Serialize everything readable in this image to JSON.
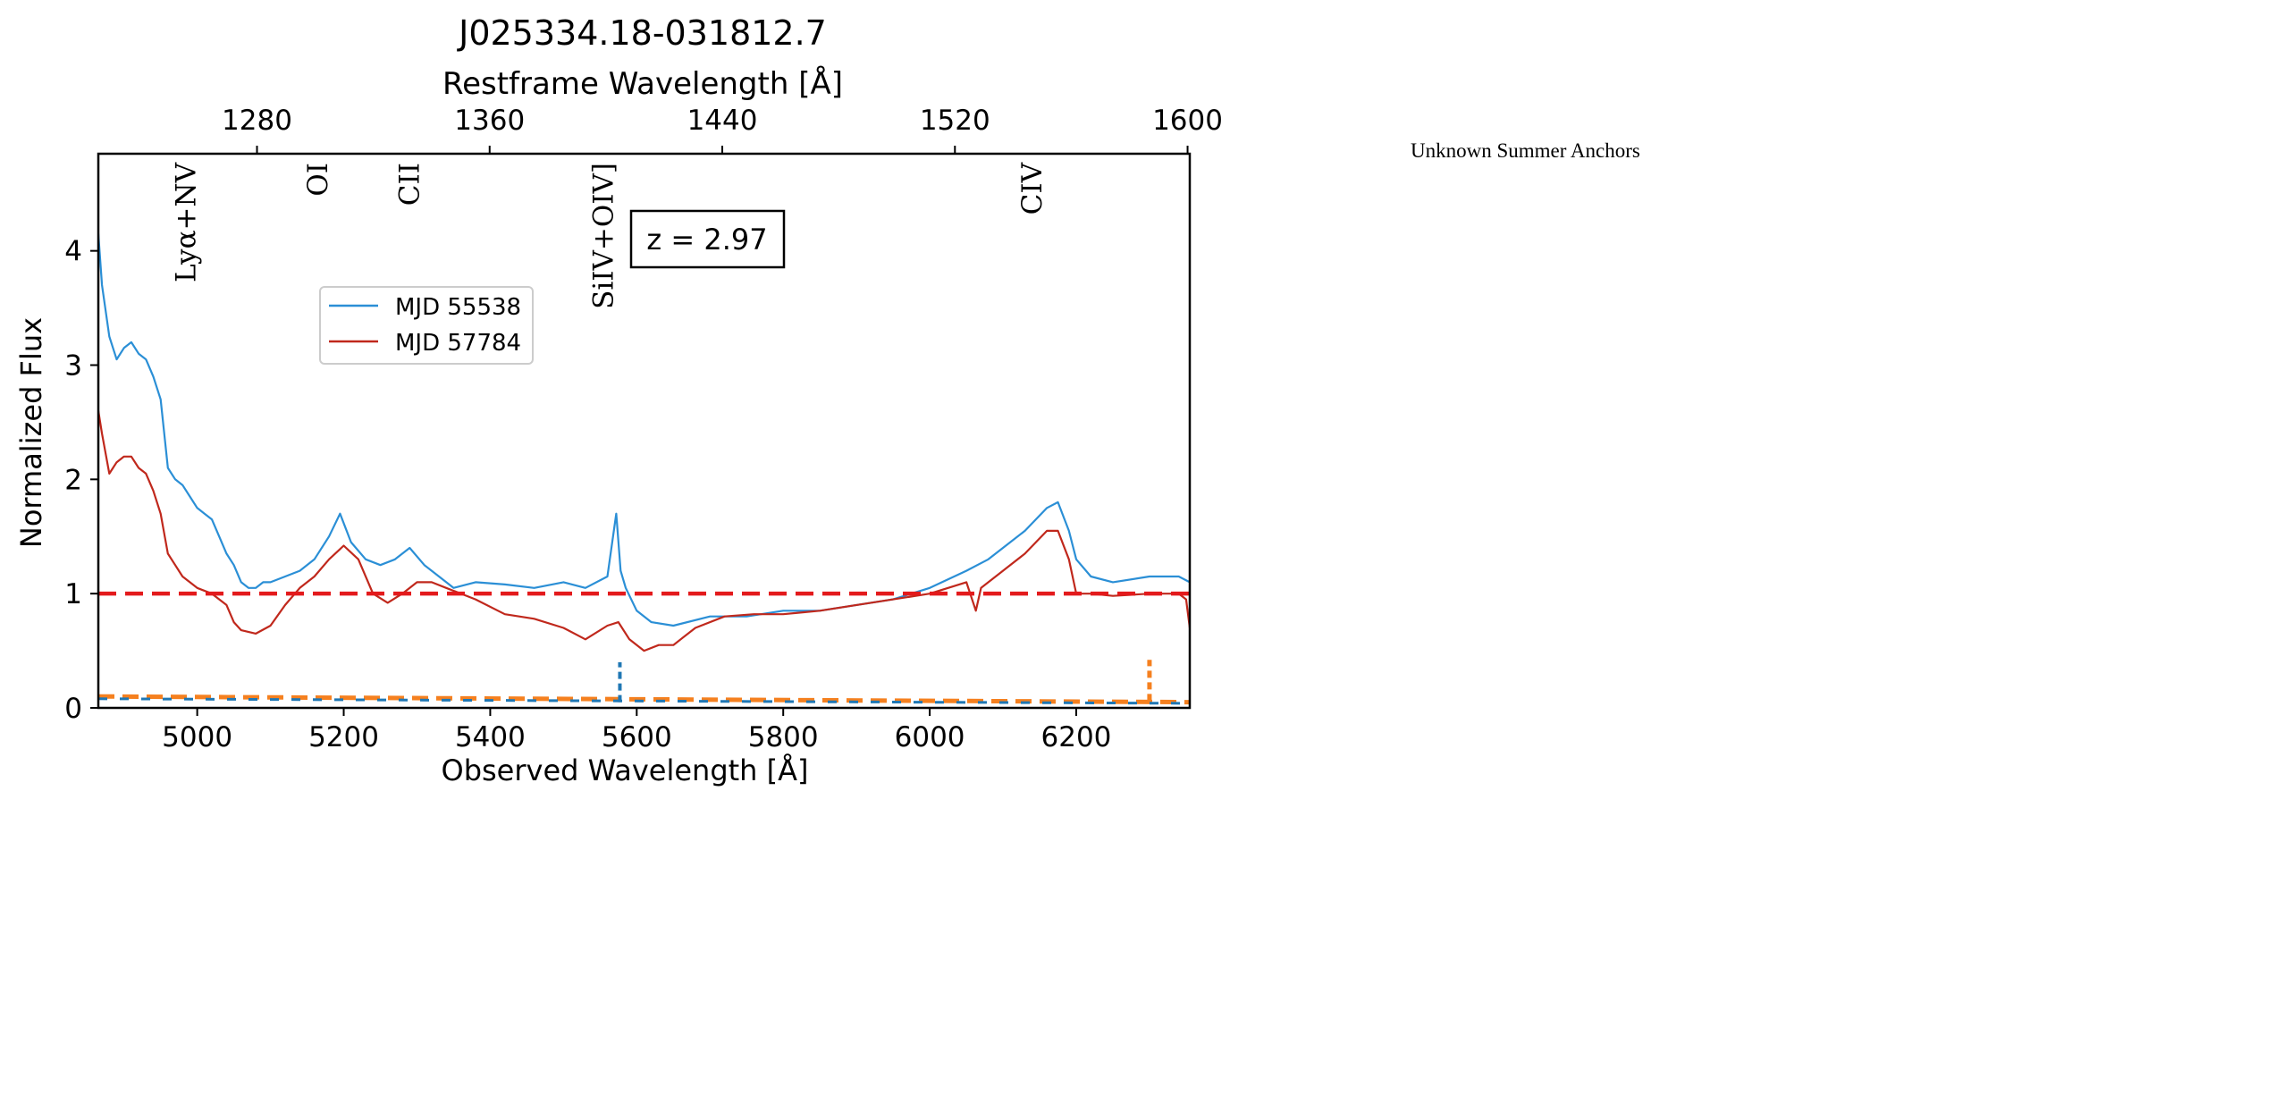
{
  "side_note": "Unknown Summer Anchors",
  "chart_data": {
    "type": "line",
    "title": "J025334.18-031812.7",
    "xlabel": "Observed Wavelength [Å]",
    "ylabel": "Normalized Flux",
    "top_xlabel": "Restframe Wavelength [Å]",
    "xlim": [
      4865,
      6355
    ],
    "ylim": [
      0,
      4.85
    ],
    "x_ticks": [
      "5000",
      "5200",
      "5400",
      "5600",
      "5800",
      "6000",
      "6200"
    ],
    "y_ticks": [
      "0",
      "1",
      "2",
      "3",
      "4"
    ],
    "top_x_ticks": [
      "1280",
      "1360",
      "1440",
      "1520",
      "1600"
    ],
    "redshift_label": "z = 2.97",
    "reference_line": {
      "y": 1.0,
      "style": "dashed",
      "color": "#e31a1c"
    },
    "line_labels": [
      {
        "label": "Lyα+NV",
        "x": 4985
      },
      {
        "label": "OI",
        "x": 5165
      },
      {
        "label": "CII",
        "x": 5290
      },
      {
        "label": "SiIV+OIV]",
        "x": 5555
      },
      {
        "label": "CIV",
        "x": 6140
      }
    ],
    "legend_position": "upper-left",
    "series": [
      {
        "name": "MJD 55538",
        "color": "#2b8fd6",
        "x": [
          4865,
          4870,
          4880,
          4890,
          4900,
          4910,
          4920,
          4930,
          4940,
          4950,
          4960,
          4970,
          4980,
          4990,
          5000,
          5010,
          5020,
          5030,
          5040,
          5050,
          5060,
          5070,
          5080,
          5090,
          5100,
          5120,
          5140,
          5160,
          5180,
          5195,
          5210,
          5230,
          5250,
          5270,
          5290,
          5310,
          5330,
          5350,
          5380,
          5420,
          5460,
          5500,
          5530,
          5560,
          5572,
          5578,
          5585,
          5600,
          5620,
          5650,
          5700,
          5750,
          5800,
          5850,
          5900,
          5950,
          6000,
          6050,
          6080,
          6100,
          6130,
          6160,
          6175,
          6190,
          6200,
          6220,
          6250,
          6300,
          6340,
          6355
        ],
        "values": [
          4.15,
          3.7,
          3.25,
          3.05,
          3.15,
          3.2,
          3.1,
          3.05,
          2.9,
          2.7,
          2.1,
          2.0,
          1.95,
          1.85,
          1.75,
          1.7,
          1.65,
          1.5,
          1.35,
          1.25,
          1.1,
          1.05,
          1.05,
          1.1,
          1.1,
          1.15,
          1.2,
          1.3,
          1.5,
          1.7,
          1.45,
          1.3,
          1.25,
          1.3,
          1.4,
          1.25,
          1.15,
          1.05,
          1.1,
          1.08,
          1.05,
          1.1,
          1.05,
          1.15,
          1.7,
          1.2,
          1.05,
          0.85,
          0.75,
          0.72,
          0.8,
          0.8,
          0.85,
          0.85,
          0.9,
          0.95,
          1.05,
          1.2,
          1.3,
          1.4,
          1.55,
          1.75,
          1.8,
          1.55,
          1.3,
          1.15,
          1.1,
          1.15,
          1.15,
          1.1
        ]
      },
      {
        "name": "MJD 57784",
        "color": "#c0281c",
        "x": [
          4865,
          4870,
          4880,
          4890,
          4900,
          4910,
          4920,
          4930,
          4940,
          4950,
          4960,
          4970,
          4980,
          4990,
          5000,
          5020,
          5040,
          5050,
          5060,
          5080,
          5100,
          5120,
          5140,
          5160,
          5180,
          5200,
          5220,
          5240,
          5260,
          5280,
          5300,
          5320,
          5340,
          5380,
          5420,
          5460,
          5500,
          5530,
          5560,
          5575,
          5590,
          5610,
          5630,
          5650,
          5680,
          5720,
          5760,
          5800,
          5850,
          5900,
          5950,
          6000,
          6050,
          6063,
          6070,
          6100,
          6130,
          6160,
          6175,
          6190,
          6200,
          6220,
          6250,
          6300,
          6340,
          6350,
          6355
        ],
        "values": [
          2.6,
          2.4,
          2.05,
          2.15,
          2.2,
          2.2,
          2.1,
          2.05,
          1.9,
          1.7,
          1.35,
          1.25,
          1.15,
          1.1,
          1.05,
          1.0,
          0.9,
          0.75,
          0.68,
          0.65,
          0.72,
          0.9,
          1.05,
          1.15,
          1.3,
          1.42,
          1.3,
          1.0,
          0.92,
          1.0,
          1.1,
          1.1,
          1.05,
          0.95,
          0.82,
          0.78,
          0.7,
          0.6,
          0.72,
          0.75,
          0.6,
          0.5,
          0.55,
          0.55,
          0.7,
          0.8,
          0.82,
          0.82,
          0.85,
          0.9,
          0.95,
          1.0,
          1.1,
          0.85,
          1.05,
          1.2,
          1.35,
          1.55,
          1.55,
          1.3,
          1.0,
          1.0,
          0.98,
          1.0,
          1.0,
          0.95,
          0.7
        ]
      }
    ]
  }
}
